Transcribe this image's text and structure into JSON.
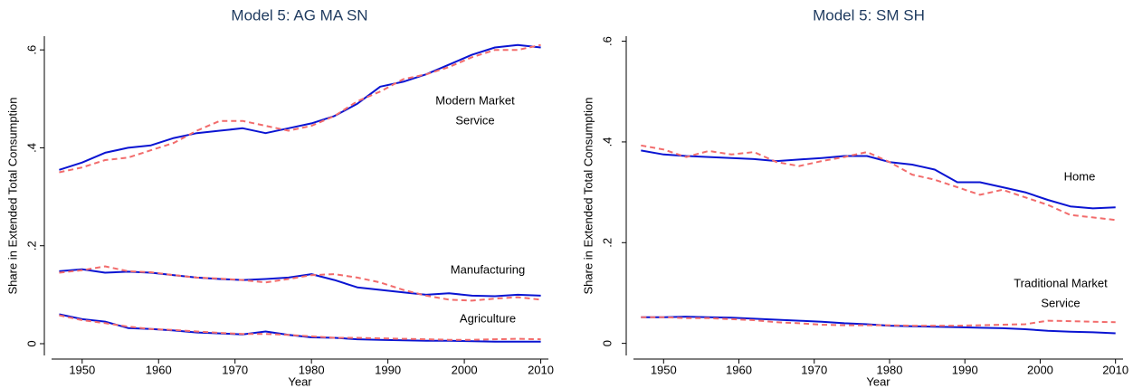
{
  "chart_data": [
    {
      "type": "line",
      "title": "Model 5:  AG MA SN",
      "xlabel": "Year",
      "ylabel": "Share in Extended Total Consumption",
      "x": [
        1947,
        1950,
        1953,
        1956,
        1959,
        1962,
        1965,
        1968,
        1971,
        1974,
        1977,
        1980,
        1983,
        1986,
        1989,
        1992,
        1995,
        1998,
        2001,
        2004,
        2007,
        2010
      ],
      "xlim": [
        1946,
        2011
      ],
      "xticks": [
        1950,
        1960,
        1970,
        1980,
        1990,
        2000,
        2010
      ],
      "ylim": [
        -0.024,
        0.628
      ],
      "yticks": [
        0,
        {
          "value": 0.2,
          "label": ".2"
        },
        {
          "value": 0.4,
          "label": ".4"
        },
        {
          "value": 0.6,
          "label": ".6"
        }
      ],
      "grid": false,
      "series": [
        {
          "color": "#0a14d2",
          "dash": false,
          "values": [
            0.355,
            0.37,
            0.39,
            0.4,
            0.405,
            0.42,
            0.43,
            0.435,
            0.44,
            0.43,
            0.44,
            0.45,
            0.465,
            0.49,
            0.525,
            0.535,
            0.55,
            0.57,
            0.59,
            0.605,
            0.61,
            0.605
          ]
        },
        {
          "color": "#f26c6c",
          "dash": true,
          "values": [
            0.35,
            0.36,
            0.375,
            0.38,
            0.395,
            0.41,
            0.435,
            0.455,
            0.455,
            0.445,
            0.435,
            0.445,
            0.465,
            0.495,
            0.515,
            0.54,
            0.55,
            0.565,
            0.585,
            0.6,
            0.6,
            0.61
          ]
        },
        {
          "color": "#0a14d2",
          "dash": false,
          "values": [
            0.148,
            0.152,
            0.145,
            0.147,
            0.145,
            0.14,
            0.135,
            0.132,
            0.13,
            0.132,
            0.135,
            0.142,
            0.13,
            0.115,
            0.11,
            0.105,
            0.1,
            0.103,
            0.098,
            0.097,
            0.1,
            0.098
          ]
        },
        {
          "color": "#f26c6c",
          "dash": true,
          "values": [
            0.145,
            0.15,
            0.158,
            0.148,
            0.146,
            0.14,
            0.135,
            0.133,
            0.13,
            0.125,
            0.132,
            0.14,
            0.142,
            0.135,
            0.125,
            0.11,
            0.098,
            0.09,
            0.088,
            0.092,
            0.095,
            0.09
          ]
        },
        {
          "color": "#0a14d2",
          "dash": false,
          "values": [
            0.06,
            0.05,
            0.045,
            0.032,
            0.03,
            0.027,
            0.023,
            0.021,
            0.019,
            0.025,
            0.018,
            0.013,
            0.012,
            0.009,
            0.008,
            0.007,
            0.006,
            0.006,
            0.005,
            0.004,
            0.004,
            0.004
          ]
        },
        {
          "color": "#f26c6c",
          "dash": true,
          "values": [
            0.058,
            0.048,
            0.042,
            0.035,
            0.03,
            0.028,
            0.025,
            0.022,
            0.02,
            0.02,
            0.018,
            0.015,
            0.012,
            0.012,
            0.011,
            0.01,
            0.009,
            0.008,
            0.008,
            0.009,
            0.01,
            0.009
          ]
        }
      ],
      "annotations": [
        [
          "Modern Market",
          "Service"
        ],
        [
          "Manufacturing"
        ],
        [
          "Agriculture"
        ]
      ]
    },
    {
      "type": "line",
      "title": "Model 5:  SM SH",
      "xlabel": "Year",
      "ylabel": "Share in Extended Total Consumption",
      "x": [
        1947,
        1950,
        1953,
        1956,
        1959,
        1962,
        1965,
        1968,
        1971,
        1974,
        1977,
        1980,
        1983,
        1986,
        1989,
        1992,
        1995,
        1998,
        2001,
        2004,
        2007,
        2010
      ],
      "xlim": [
        1946,
        2011
      ],
      "xticks": [
        1950,
        1960,
        1970,
        1980,
        1990,
        2000,
        2010
      ],
      "ylim": [
        -0.024,
        0.61
      ],
      "yticks": [
        0,
        {
          "value": 0.2,
          "label": ".2"
        },
        {
          "value": 0.4,
          "label": ".4"
        },
        {
          "value": 0.6,
          "label": ".6"
        }
      ],
      "grid": false,
      "series": [
        {
          "color": "#0a14d2",
          "dash": false,
          "values": [
            0.383,
            0.375,
            0.372,
            0.37,
            0.368,
            0.366,
            0.362,
            0.365,
            0.368,
            0.372,
            0.372,
            0.36,
            0.355,
            0.345,
            0.32,
            0.32,
            0.31,
            0.3,
            0.285,
            0.272,
            0.268,
            0.27
          ]
        },
        {
          "color": "#f26c6c",
          "dash": true,
          "values": [
            0.393,
            0.385,
            0.37,
            0.382,
            0.375,
            0.38,
            0.36,
            0.352,
            0.362,
            0.37,
            0.38,
            0.36,
            0.335,
            0.325,
            0.31,
            0.295,
            0.305,
            0.29,
            0.275,
            0.255,
            0.25,
            0.245
          ]
        },
        {
          "color": "#0a14d2",
          "dash": false,
          "values": [
            0.052,
            0.052,
            0.053,
            0.052,
            0.051,
            0.049,
            0.047,
            0.045,
            0.043,
            0.04,
            0.038,
            0.035,
            0.034,
            0.033,
            0.032,
            0.031,
            0.03,
            0.028,
            0.025,
            0.023,
            0.022,
            0.02
          ]
        },
        {
          "color": "#f26c6c",
          "dash": true,
          "values": [
            0.052,
            0.052,
            0.05,
            0.05,
            0.048,
            0.046,
            0.042,
            0.04,
            0.037,
            0.036,
            0.036,
            0.036,
            0.035,
            0.035,
            0.035,
            0.036,
            0.037,
            0.038,
            0.045,
            0.044,
            0.043,
            0.042
          ]
        }
      ],
      "annotations": [
        [
          "Home"
        ],
        [
          "Traditional Market",
          "Service"
        ]
      ]
    }
  ]
}
